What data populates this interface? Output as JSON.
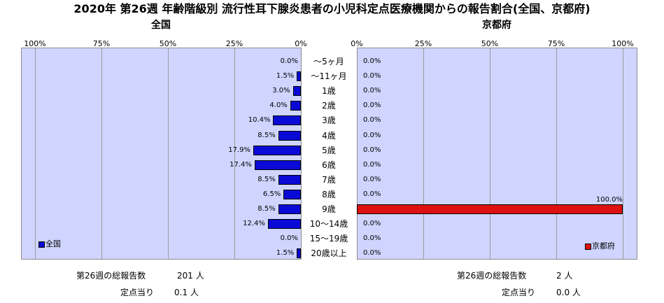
{
  "title": "2020年 第26週 年齢階級別 流行性耳下腺炎患者の小児科定点医療機関からの報告割合(全国、京都府)",
  "chart_data": {
    "type": "bar",
    "orientation": "horizontal",
    "categories": [
      "～5ヶ月",
      "～11ヶ月",
      "1歳",
      "2歳",
      "3歳",
      "4歳",
      "5歳",
      "6歳",
      "7歳",
      "8歳",
      "9歳",
      "10～14歳",
      "15～19歳",
      "20歳以上"
    ],
    "series": [
      {
        "name": "全国",
        "panel_title": "全国",
        "color": "#0a0ad6",
        "values": [
          0.0,
          1.5,
          3.0,
          4.0,
          10.4,
          8.5,
          17.9,
          17.4,
          8.5,
          6.5,
          8.5,
          12.4,
          0.0,
          1.5
        ],
        "labels": [
          "0.0%",
          "1.5%",
          "3.0%",
          "4.0%",
          "10.4%",
          "8.5%",
          "17.9%",
          "17.4%",
          "8.5%",
          "6.5%",
          "8.5%",
          "12.4%",
          "0.0%",
          "1.5%"
        ],
        "axis_ticks": [
          "100%",
          "75%",
          "50%",
          "25%",
          "0%"
        ],
        "xlim": [
          0,
          100
        ],
        "direction": "right-to-left",
        "legend_position": "bottom-left"
      },
      {
        "name": "京都府",
        "panel_title": "京都府",
        "color": "#dd1111",
        "values": [
          0.0,
          0.0,
          0.0,
          0.0,
          0.0,
          0.0,
          0.0,
          0.0,
          0.0,
          0.0,
          100.0,
          0.0,
          0.0,
          0.0
        ],
        "labels": [
          "0.0%",
          "0.0%",
          "0.0%",
          "0.0%",
          "0.0%",
          "0.0%",
          "0.0%",
          "0.0%",
          "0.0%",
          "0.0%",
          "100.0%",
          "0.0%",
          "0.0%",
          "0.0%"
        ],
        "axis_ticks": [
          "0%",
          "25%",
          "50%",
          "75%",
          "100%"
        ],
        "xlim": [
          0,
          100
        ],
        "direction": "left-to-right",
        "legend_position": "bottom-right"
      }
    ],
    "grid": true
  },
  "footer": {
    "left": {
      "total_label": "第26週の総報告数",
      "total_value": "201 人",
      "per_label": "定点当り",
      "per_value": "0.1 人"
    },
    "right": {
      "total_label": "第26週の総報告数",
      "total_value": "2 人",
      "per_label": "定点当り",
      "per_value": "0.0 人"
    }
  }
}
